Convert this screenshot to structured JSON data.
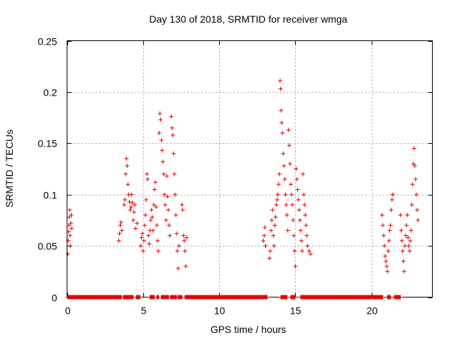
{
  "chart_data": {
    "type": "scatter",
    "title": "Day 130 of 2018, SRMTID for receiver wmga",
    "xlabel": "GPS time / hours",
    "ylabel": "SRMTID / TECUs",
    "xlim": [
      0,
      24
    ],
    "ylim": [
      0,
      0.25
    ],
    "xticks": [
      0,
      5,
      10,
      15,
      20
    ],
    "yticks": [
      0,
      0.05,
      0.1,
      0.15,
      0.2,
      0.25
    ],
    "ytick_labels": [
      "0",
      "0.05",
      "0.1",
      "0.15",
      "0.2",
      "0.25"
    ],
    "grid": true,
    "marker": "+",
    "series": [
      {
        "name": "SRMTID",
        "color": "#e00000",
        "points": [
          [
            0.05,
            0.042
          ],
          [
            0.08,
            0.055
          ],
          [
            0.1,
            0.064
          ],
          [
            0.12,
            0.07
          ],
          [
            0.15,
            0.078
          ],
          [
            0.18,
            0.085
          ],
          [
            0.2,
            0.06
          ],
          [
            0.22,
            0.05
          ],
          [
            0.25,
            0.072
          ],
          [
            0.28,
            0.08
          ],
          [
            0.3,
            0.067
          ],
          [
            3.4,
            0.055
          ],
          [
            3.45,
            0.062
          ],
          [
            3.5,
            0.07
          ],
          [
            3.55,
            0.073
          ],
          [
            3.6,
            0.065
          ],
          [
            3.75,
            0.09
          ],
          [
            3.8,
            0.095
          ],
          [
            3.85,
            0.12
          ],
          [
            3.9,
            0.135
          ],
          [
            3.95,
            0.128
          ],
          [
            4.0,
            0.11
          ],
          [
            4.05,
            0.1
          ],
          [
            4.1,
            0.093
          ],
          [
            4.15,
            0.085
          ],
          [
            4.2,
            0.088
          ],
          [
            4.25,
            0.1
          ],
          [
            4.3,
            0.092
          ],
          [
            4.35,
            0.075
          ],
          [
            4.4,
            0.083
          ],
          [
            4.45,
            0.09
          ],
          [
            4.5,
            0.067
          ],
          [
            4.6,
            0.072
          ],
          [
            4.85,
            0.05
          ],
          [
            4.9,
            0.058
          ],
          [
            4.95,
            0.062
          ],
          [
            5.0,
            0.045
          ],
          [
            5.05,
            0.055
          ],
          [
            5.1,
            0.07
          ],
          [
            5.15,
            0.08
          ],
          [
            5.2,
            0.095
          ],
          [
            5.25,
            0.12
          ],
          [
            5.3,
            0.115
          ],
          [
            5.35,
            0.06
          ],
          [
            5.4,
            0.052
          ],
          [
            5.45,
            0.065
          ],
          [
            5.5,
            0.075
          ],
          [
            5.55,
            0.085
          ],
          [
            5.6,
            0.078
          ],
          [
            5.65,
            0.065
          ],
          [
            5.7,
            0.09
          ],
          [
            5.75,
            0.105
          ],
          [
            5.8,
            0.112
          ],
          [
            5.85,
            0.088
          ],
          [
            5.9,
            0.07
          ],
          [
            5.95,
            0.055
          ],
          [
            6.0,
            0.045
          ],
          [
            6.05,
            0.16
          ],
          [
            6.1,
            0.179
          ],
          [
            6.15,
            0.173
          ],
          [
            6.2,
            0.153
          ],
          [
            6.25,
            0.143
          ],
          [
            6.3,
            0.132
          ],
          [
            6.35,
            0.12
          ],
          [
            6.4,
            0.1
          ],
          [
            6.45,
            0.09
          ],
          [
            6.5,
            0.075
          ],
          [
            6.55,
            0.118
          ],
          [
            6.6,
            0.098
          ],
          [
            6.65,
            0.085
          ],
          [
            6.7,
            0.07
          ],
          [
            6.75,
            0.06
          ],
          [
            6.85,
            0.176
          ],
          [
            6.9,
            0.165
          ],
          [
            6.95,
            0.158
          ],
          [
            7.0,
            0.14
          ],
          [
            7.05,
            0.12
          ],
          [
            7.1,
            0.1
          ],
          [
            7.15,
            0.08
          ],
          [
            7.2,
            0.062
          ],
          [
            7.25,
            0.045
          ],
          [
            7.3,
            0.028
          ],
          [
            7.35,
            0.05
          ],
          [
            7.55,
            0.09
          ],
          [
            7.6,
            0.085
          ],
          [
            7.65,
            0.06
          ],
          [
            7.7,
            0.055
          ],
          [
            7.75,
            0.045
          ],
          [
            7.8,
            0.03
          ],
          [
            7.85,
            0.058
          ],
          [
            12.9,
            0.055
          ],
          [
            12.95,
            0.06
          ],
          [
            13.0,
            0.068
          ],
          [
            13.05,
            0.05
          ],
          [
            13.3,
            0.038
          ],
          [
            13.35,
            0.045
          ],
          [
            13.4,
            0.065
          ],
          [
            13.45,
            0.075
          ],
          [
            13.5,
            0.085
          ],
          [
            13.55,
            0.06
          ],
          [
            13.6,
            0.05
          ],
          [
            13.65,
            0.07
          ],
          [
            13.7,
            0.078
          ],
          [
            13.75,
            0.09
          ],
          [
            13.8,
            0.095
          ],
          [
            13.85,
            0.1
          ],
          [
            13.9,
            0.11
          ],
          [
            13.95,
            0.12
          ],
          [
            14.0,
            0.211
          ],
          [
            14.03,
            0.203
          ],
          [
            14.06,
            0.182
          ],
          [
            14.1,
            0.17
          ],
          [
            14.15,
            0.16
          ],
          [
            14.2,
            0.14
          ],
          [
            14.25,
            0.128
          ],
          [
            14.3,
            0.115
          ],
          [
            14.35,
            0.1
          ],
          [
            14.4,
            0.09
          ],
          [
            14.45,
            0.08
          ],
          [
            14.5,
            0.065
          ],
          [
            14.55,
            0.163
          ],
          [
            14.6,
            0.148
          ],
          [
            14.65,
            0.13
          ],
          [
            14.7,
            0.11
          ],
          [
            14.75,
            0.1
          ],
          [
            14.8,
            0.09
          ],
          [
            14.85,
            0.075
          ],
          [
            14.9,
            0.06
          ],
          [
            14.95,
            0.045
          ],
          [
            15.0,
            0.03
          ],
          [
            15.05,
            0.125
          ],
          [
            15.1,
            0.115
          ],
          [
            15.15,
            0.105
          ],
          [
            15.2,
            0.095
          ],
          [
            15.25,
            0.085
          ],
          [
            15.3,
            0.075
          ],
          [
            15.35,
            0.065
          ],
          [
            15.4,
            0.055
          ],
          [
            15.45,
            0.045
          ],
          [
            15.5,
            0.12
          ],
          [
            15.55,
            0.1
          ],
          [
            15.6,
            0.09
          ],
          [
            15.65,
            0.08
          ],
          [
            15.7,
            0.07
          ],
          [
            15.75,
            0.06
          ],
          [
            15.8,
            0.05
          ],
          [
            15.9,
            0.045
          ],
          [
            16.0,
            0.042
          ],
          [
            20.7,
            0.08
          ],
          [
            20.75,
            0.07
          ],
          [
            20.8,
            0.06
          ],
          [
            20.85,
            0.05
          ],
          [
            20.9,
            0.04
          ],
          [
            20.95,
            0.035
          ],
          [
            21.0,
            0.03
          ],
          [
            21.05,
            0.025
          ],
          [
            21.1,
            0.045
          ],
          [
            21.15,
            0.055
          ],
          [
            21.2,
            0.065
          ],
          [
            21.25,
            0.07
          ],
          [
            21.3,
            0.085
          ],
          [
            21.35,
            0.095
          ],
          [
            21.4,
            0.1
          ],
          [
            21.9,
            0.08
          ],
          [
            21.95,
            0.065
          ],
          [
            22.0,
            0.055
          ],
          [
            22.05,
            0.045
          ],
          [
            22.1,
            0.035
          ],
          [
            22.15,
            0.025
          ],
          [
            22.2,
            0.05
          ],
          [
            22.25,
            0.06
          ],
          [
            22.3,
            0.07
          ],
          [
            22.35,
            0.08
          ],
          [
            22.4,
            0.058
          ],
          [
            22.45,
            0.05
          ],
          [
            22.5,
            0.045
          ],
          [
            22.55,
            0.055
          ],
          [
            22.6,
            0.065
          ],
          [
            22.65,
            0.09
          ],
          [
            22.7,
            0.11
          ],
          [
            22.75,
            0.13
          ],
          [
            22.8,
            0.145
          ],
          [
            22.85,
            0.128
          ],
          [
            22.9,
            0.115
          ],
          [
            22.95,
            0.1
          ],
          [
            23.0,
            0.085
          ],
          [
            23.05,
            0.075
          ]
        ],
        "zero_segments": [
          [
            0.05,
            3.6
          ],
          [
            3.7,
            4.35
          ],
          [
            4.55,
            4.8
          ],
          [
            5.45,
            5.75
          ],
          [
            5.9,
            6.05
          ],
          [
            6.2,
            6.7
          ],
          [
            6.8,
            7.2
          ],
          [
            7.3,
            7.55
          ],
          [
            7.75,
            13.15
          ],
          [
            14.05,
            14.45
          ],
          [
            14.7,
            15.0
          ],
          [
            15.35,
            20.0
          ],
          [
            20.05,
            20.75
          ],
          [
            21.05,
            21.25
          ],
          [
            21.5,
            21.9
          ]
        ]
      }
    ]
  }
}
